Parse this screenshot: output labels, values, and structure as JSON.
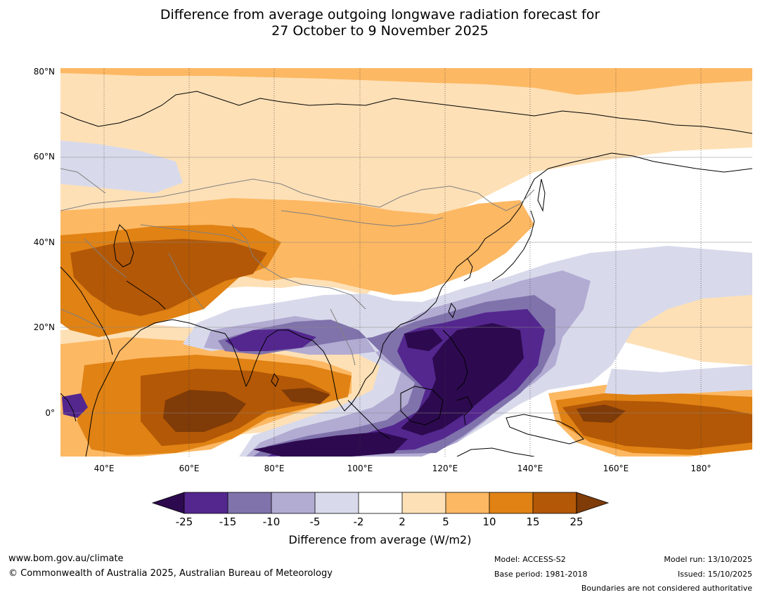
{
  "title": {
    "line1": "Difference from average outgoing longwave radiation forecast for",
    "line2": "27 October to 9 November 2025"
  },
  "axes": {
    "lat_labels": [
      "80°N",
      "60°N",
      "40°N",
      "20°N",
      "0°"
    ],
    "lon_labels": [
      "40°E",
      "60°E",
      "80°E",
      "100°E",
      "120°E",
      "140°E",
      "160°E",
      "180°"
    ]
  },
  "legend": {
    "title": "Difference from average (W/m2)",
    "tick_labels": [
      "-25",
      "-15",
      "-10",
      "-5",
      "-2",
      "2",
      "5",
      "10",
      "15",
      "25"
    ],
    "colors": [
      "#2d0a4f",
      "#54278f",
      "#8073ac",
      "#b2abd2",
      "#d8daeb",
      "#ffffff",
      "#fee0b6",
      "#fdb863",
      "#e08214",
      "#b35806",
      "#7f3b08"
    ]
  },
  "footer": {
    "website": "www.bom.gov.au/climate",
    "copyright": "© Commonwealth of Australia 2025, Australian Bureau of Meteorology",
    "model": "Model: ACCESS-S2",
    "base_period": "Base period: 1981-2018",
    "model_run": "Model run: 13/10/2025",
    "issued": "Issued: 15/10/2025",
    "disclaimer": "Boundaries are not considered authoritative"
  }
}
